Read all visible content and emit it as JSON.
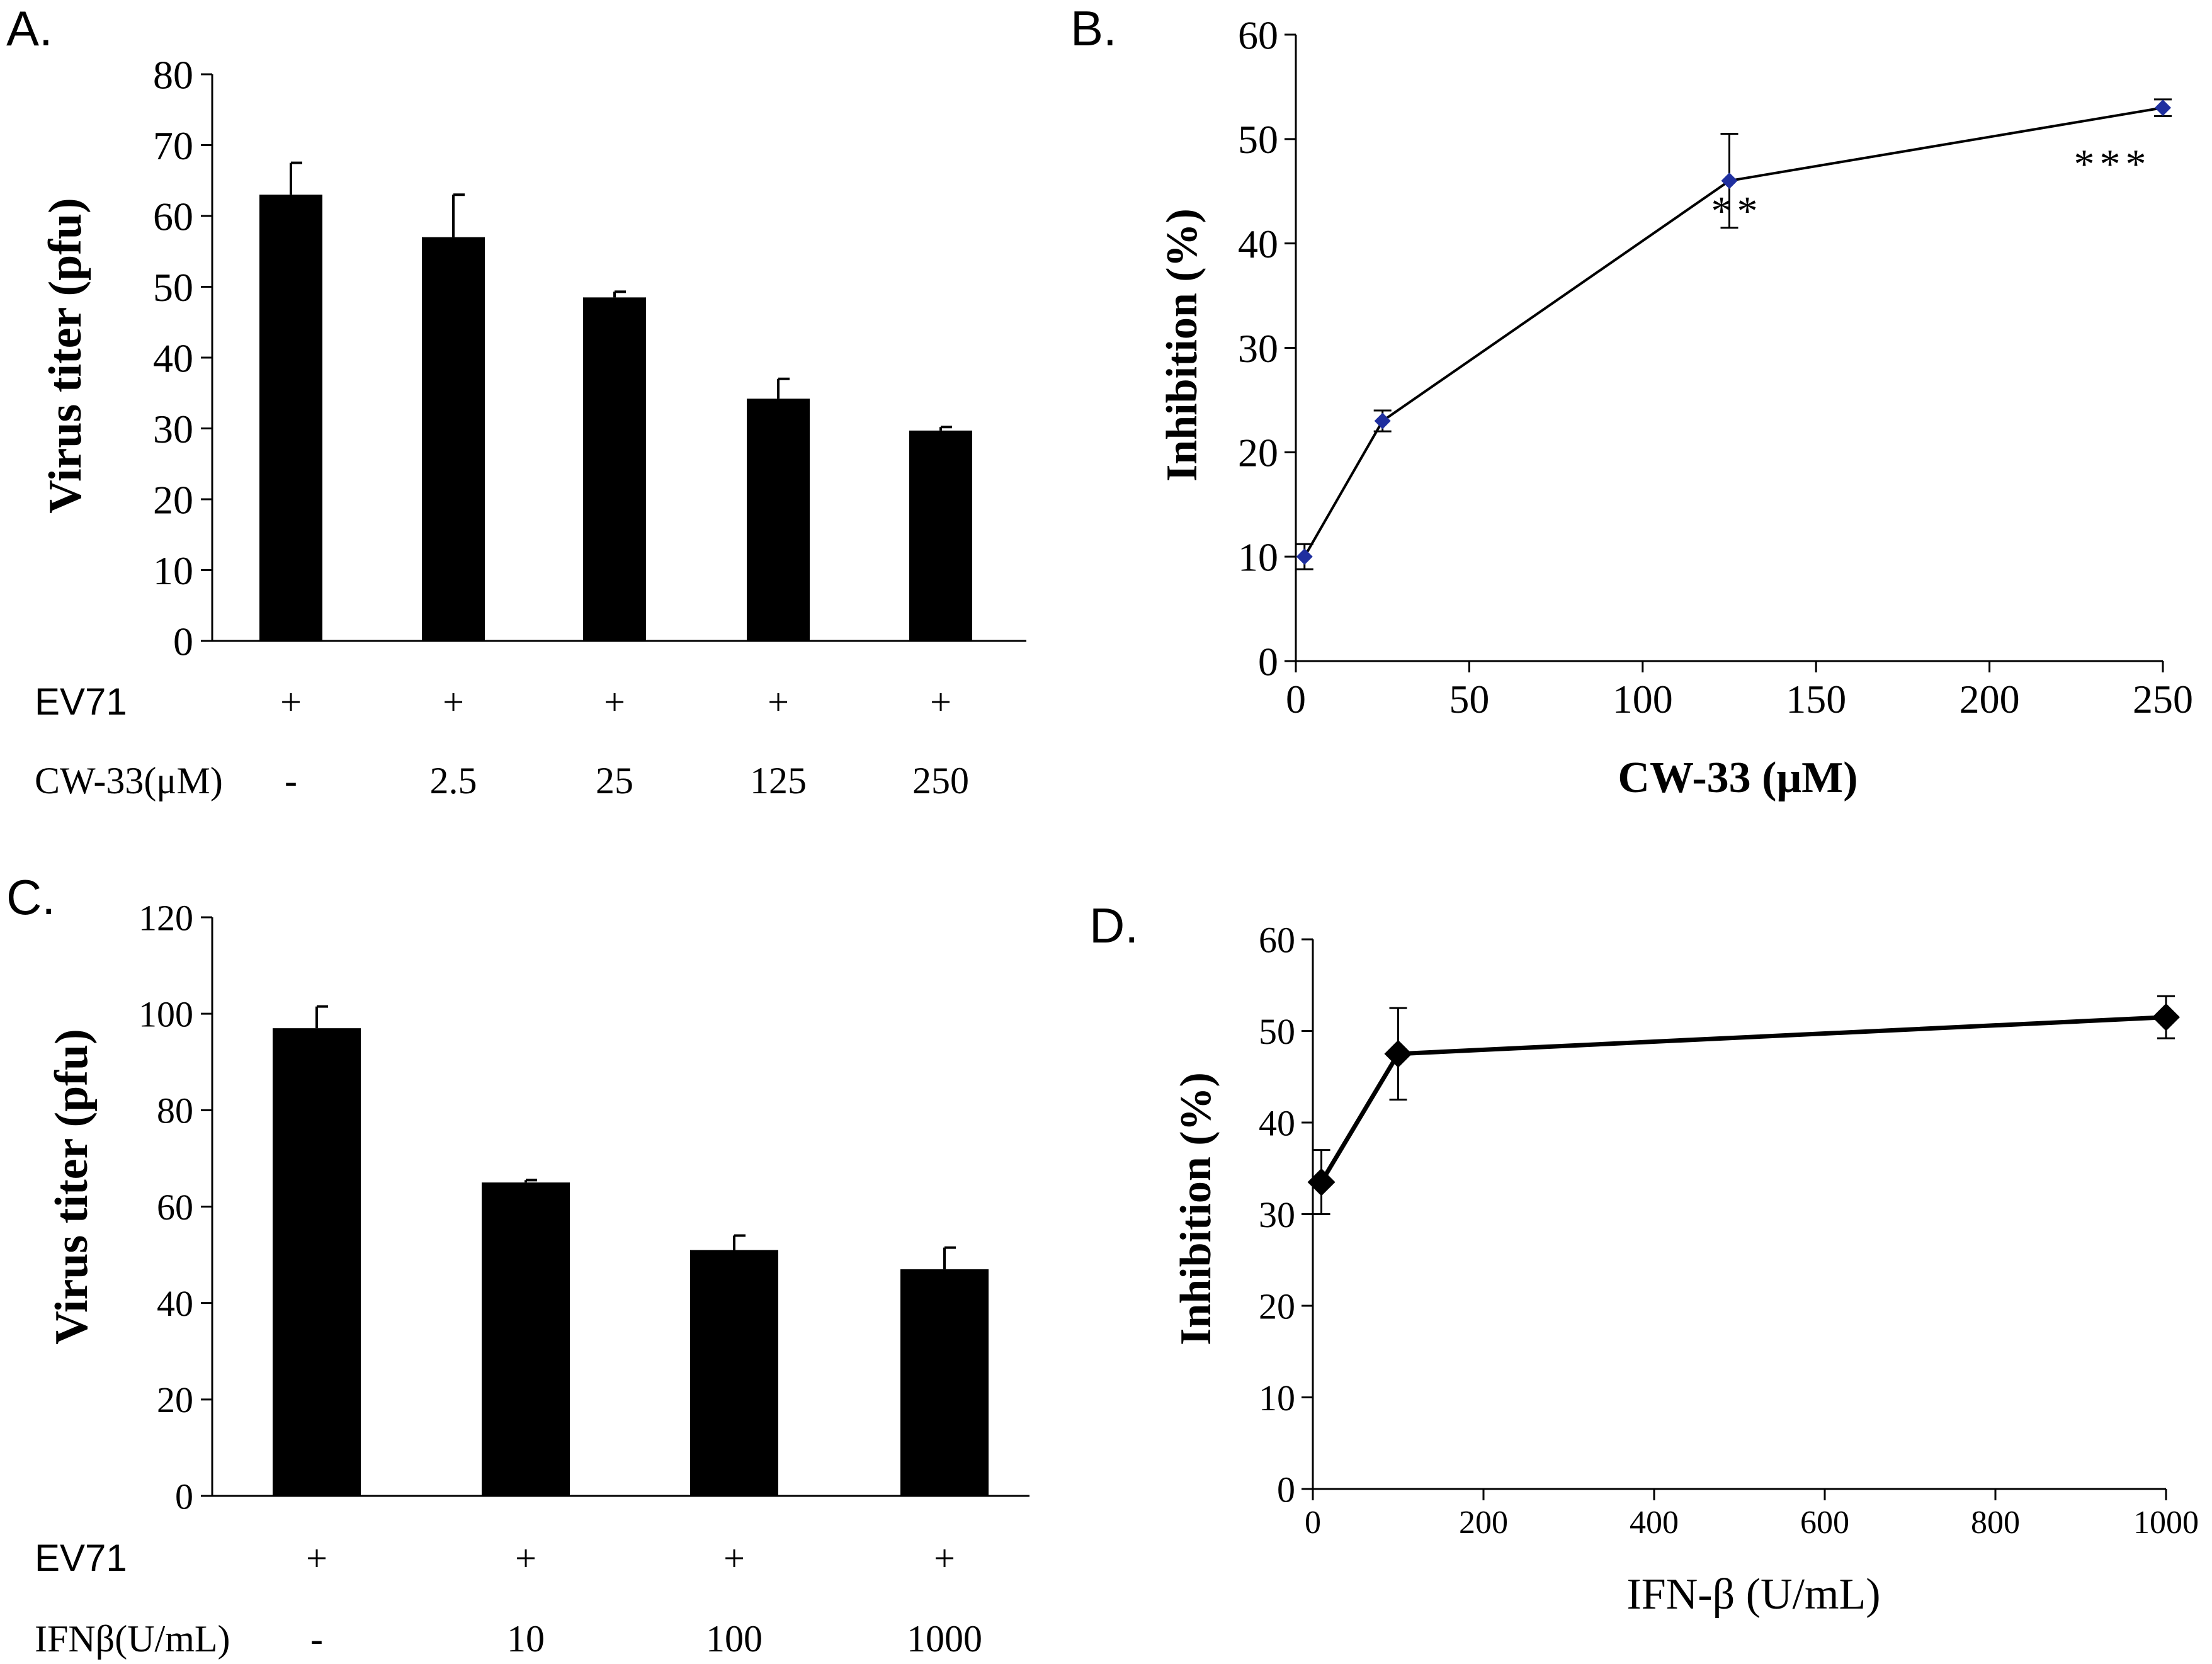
{
  "figure": {
    "panel_labels": [
      "A.",
      "B.",
      "C.",
      "D."
    ]
  },
  "chart_data": [
    {
      "id": "A",
      "type": "bar",
      "ylabel": "Virus titer (pfu)",
      "ylim": [
        0,
        80
      ],
      "yticks": [
        0,
        10,
        20,
        30,
        40,
        50,
        60,
        70,
        80
      ],
      "values": [
        63,
        57,
        48.5,
        34.2,
        29.7
      ],
      "errors": [
        4.5,
        6,
        0.8,
        2.8,
        0.5
      ],
      "rows": [
        {
          "label": "EV71",
          "values": [
            "+",
            "+",
            "+",
            "+",
            "+"
          ]
        },
        {
          "label": "CW-33(μM)",
          "values": [
            "-",
            "2.5",
            "25",
            "125",
            "250"
          ]
        }
      ]
    },
    {
      "id": "B",
      "type": "line",
      "xlabel": "CW-33 (μM)",
      "ylabel": "Inhibition (%)",
      "xlim": [
        0,
        250
      ],
      "ylim": [
        0,
        60
      ],
      "xticks": [
        0,
        50,
        100,
        150,
        200,
        250
      ],
      "yticks": [
        0,
        10,
        20,
        30,
        40,
        50,
        60
      ],
      "x": [
        2.5,
        25,
        125,
        250
      ],
      "y": [
        10,
        23,
        46,
        53
      ],
      "errors": [
        1.2,
        1,
        4.5,
        0.8
      ],
      "marker_color": "#1f2f9f",
      "annotations": [
        {
          "text": "**",
          "x": 125,
          "y": 46
        },
        {
          "text": "***",
          "x": 250,
          "y": 50.5
        }
      ]
    },
    {
      "id": "C",
      "type": "bar",
      "ylabel": "Virus titer (pfu)",
      "ylim": [
        0,
        120
      ],
      "yticks": [
        0,
        20,
        40,
        60,
        80,
        100,
        120
      ],
      "values": [
        97,
        65,
        51,
        47
      ],
      "errors": [
        4.5,
        0.5,
        3,
        4.5
      ],
      "rows": [
        {
          "label": "EV71",
          "values": [
            "+",
            "+",
            "+",
            "+"
          ]
        },
        {
          "label": "IFNβ(U/mL)",
          "values": [
            "-",
            "10",
            "100",
            "1000"
          ]
        }
      ]
    },
    {
      "id": "D",
      "type": "line",
      "xlabel": "IFN-β (U/mL)",
      "ylabel": "Inhibition (%)",
      "xlim": [
        0,
        1000
      ],
      "ylim": [
        0,
        60
      ],
      "xticks": [
        0,
        200,
        400,
        600,
        800,
        1000
      ],
      "yticks": [
        0,
        10,
        20,
        30,
        40,
        50,
        60
      ],
      "x": [
        10,
        100,
        1000
      ],
      "y": [
        33.5,
        47.5,
        51.5
      ],
      "errors": [
        3.5,
        5,
        2.3
      ],
      "marker_color": "#000000"
    }
  ]
}
